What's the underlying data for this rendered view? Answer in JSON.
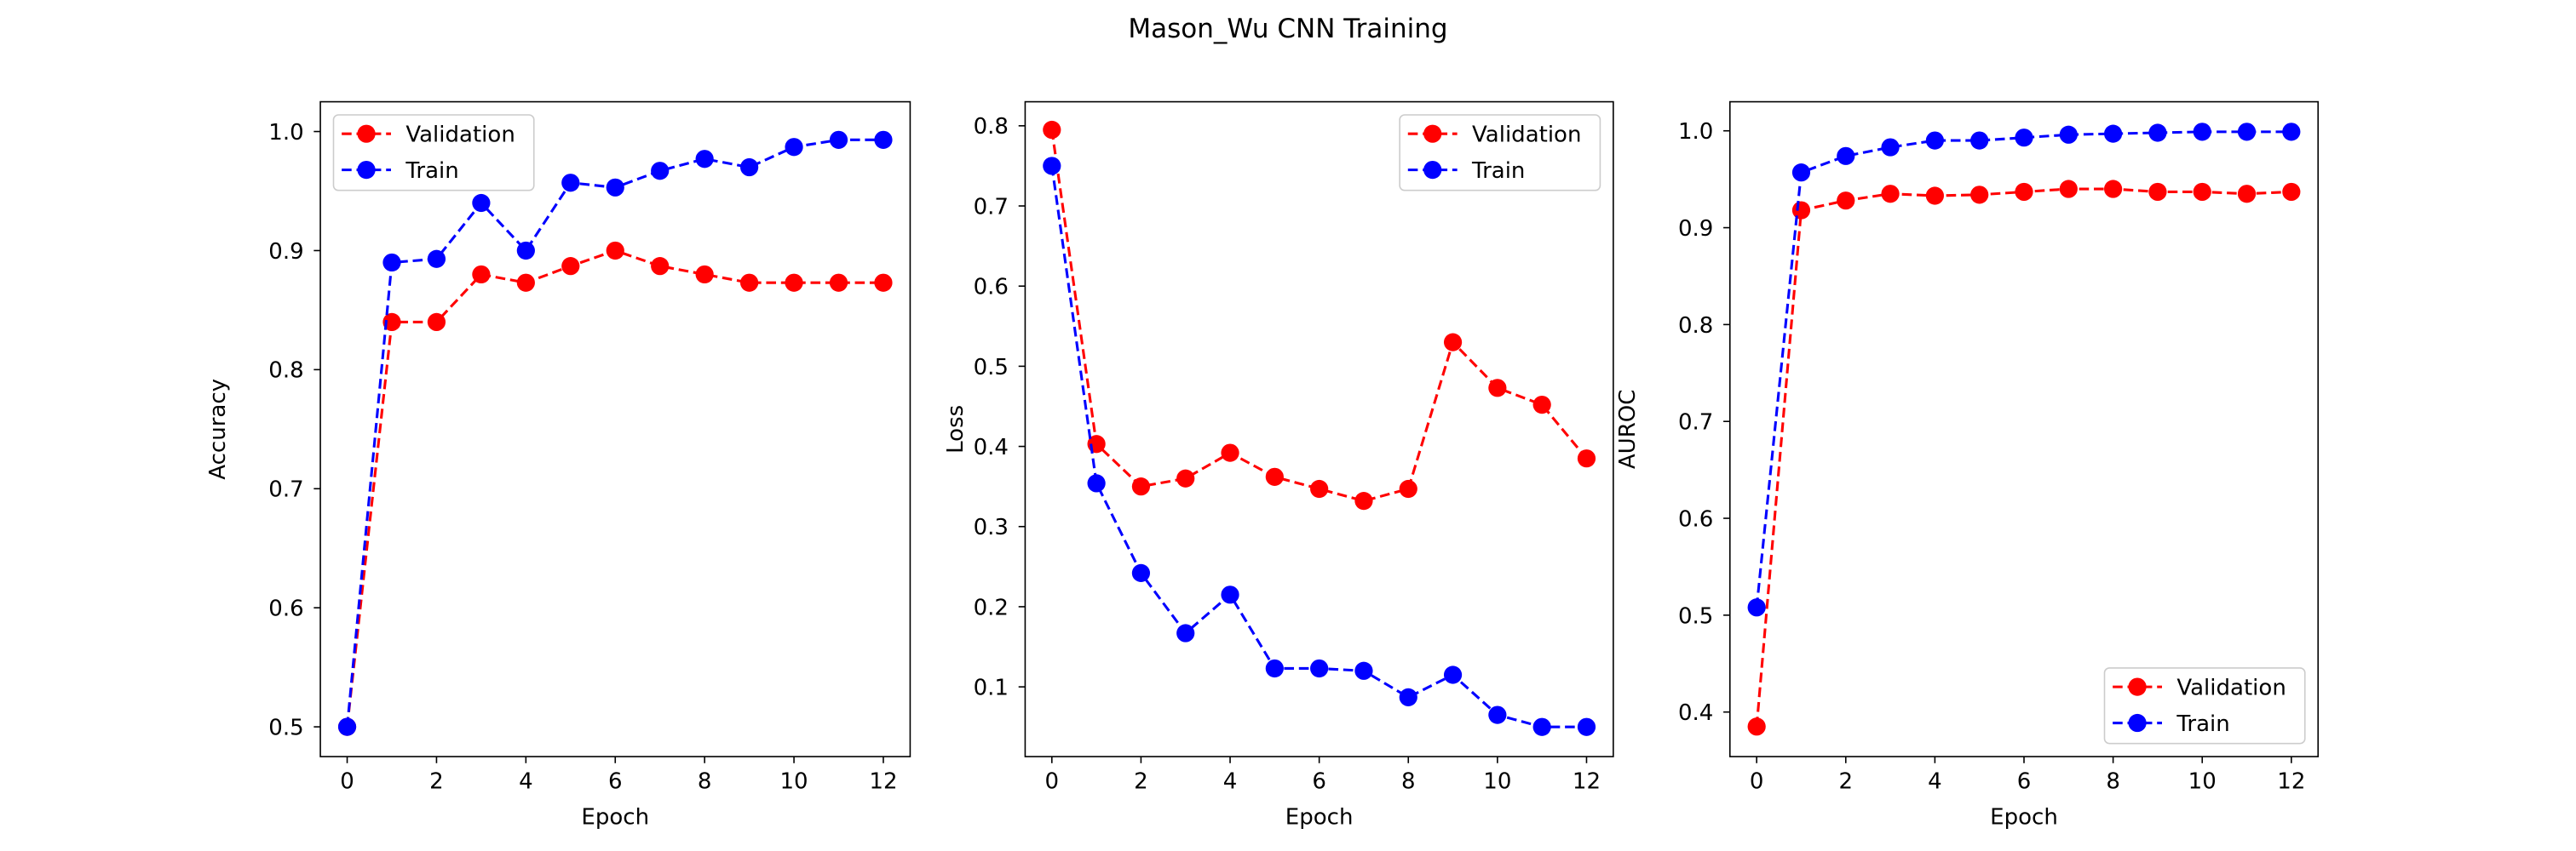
{
  "figure": {
    "suptitle": "Mason_Wu CNN Training"
  },
  "colors": {
    "validation": "#ff0000",
    "train": "#0000ff",
    "axes": "#000000",
    "background": "#ffffff"
  },
  "chart_data": [
    {
      "type": "line",
      "xlabel": "Epoch",
      "ylabel": "Accuracy",
      "x": [
        0,
        1,
        2,
        3,
        4,
        5,
        6,
        7,
        8,
        9,
        10,
        11,
        12
      ],
      "xlim": [
        -0.6,
        12.6
      ],
      "ylim": [
        0.475,
        1.025
      ],
      "xticks": [
        0,
        2,
        4,
        6,
        8,
        10,
        12
      ],
      "yticks": [
        0.5,
        0.6,
        0.7,
        0.8,
        0.9,
        1.0
      ],
      "ytick_labels": [
        "0.5",
        "0.6",
        "0.7",
        "0.8",
        "0.9",
        "1.0"
      ],
      "legend_position": "top-left",
      "grid": false,
      "series": [
        {
          "name": "Validation",
          "color": "#ff0000",
          "style": "dashed",
          "marker": "circle",
          "values": [
            0.5,
            0.84,
            0.84,
            0.88,
            0.873,
            0.887,
            0.9,
            0.887,
            0.88,
            0.873,
            0.873,
            0.873,
            0.873
          ]
        },
        {
          "name": "Train",
          "color": "#0000ff",
          "style": "dashed",
          "marker": "circle",
          "values": [
            0.5,
            0.89,
            0.893,
            0.94,
            0.9,
            0.957,
            0.953,
            0.967,
            0.977,
            0.97,
            0.987,
            0.993,
            0.993
          ]
        }
      ]
    },
    {
      "type": "line",
      "xlabel": "Epoch",
      "ylabel": "Loss",
      "x": [
        0,
        1,
        2,
        3,
        4,
        5,
        6,
        7,
        8,
        9,
        10,
        11,
        12
      ],
      "xlim": [
        -0.6,
        12.6
      ],
      "ylim": [
        0.013,
        0.83
      ],
      "xticks": [
        0,
        2,
        4,
        6,
        8,
        10,
        12
      ],
      "yticks": [
        0.1,
        0.2,
        0.3,
        0.4,
        0.5,
        0.6,
        0.7,
        0.8
      ],
      "ytick_labels": [
        "0.1",
        "0.2",
        "0.3",
        "0.4",
        "0.5",
        "0.6",
        "0.7",
        "0.8"
      ],
      "legend_position": "top-right",
      "grid": false,
      "series": [
        {
          "name": "Validation",
          "color": "#ff0000",
          "style": "dashed",
          "marker": "circle",
          "values": [
            0.795,
            0.403,
            0.35,
            0.36,
            0.392,
            0.362,
            0.347,
            0.332,
            0.347,
            0.53,
            0.473,
            0.452,
            0.385
          ]
        },
        {
          "name": "Train",
          "color": "#0000ff",
          "style": "dashed",
          "marker": "circle",
          "values": [
            0.75,
            0.354,
            0.242,
            0.167,
            0.215,
            0.123,
            0.123,
            0.12,
            0.087,
            0.115,
            0.065,
            0.05,
            0.05
          ]
        }
      ]
    },
    {
      "type": "line",
      "xlabel": "Epoch",
      "ylabel": "AUROC",
      "x": [
        0,
        1,
        2,
        3,
        4,
        5,
        6,
        7,
        8,
        9,
        10,
        11,
        12
      ],
      "xlim": [
        -0.6,
        12.6
      ],
      "ylim": [
        0.354,
        1.03
      ],
      "xticks": [
        0,
        2,
        4,
        6,
        8,
        10,
        12
      ],
      "yticks": [
        0.4,
        0.5,
        0.6,
        0.7,
        0.8,
        0.9,
        1.0
      ],
      "ytick_labels": [
        "0.4",
        "0.5",
        "0.6",
        "0.7",
        "0.8",
        "0.9",
        "1.0"
      ],
      "legend_position": "bottom-right",
      "grid": false,
      "series": [
        {
          "name": "Validation",
          "color": "#ff0000",
          "style": "dashed",
          "marker": "circle",
          "values": [
            0.385,
            0.918,
            0.928,
            0.935,
            0.933,
            0.934,
            0.937,
            0.94,
            0.94,
            0.937,
            0.937,
            0.935,
            0.937
          ]
        },
        {
          "name": "Train",
          "color": "#0000ff",
          "style": "dashed",
          "marker": "circle",
          "values": [
            0.508,
            0.957,
            0.974,
            0.983,
            0.99,
            0.99,
            0.993,
            0.996,
            0.997,
            0.998,
            0.999,
            0.999,
            0.999
          ]
        }
      ]
    }
  ]
}
